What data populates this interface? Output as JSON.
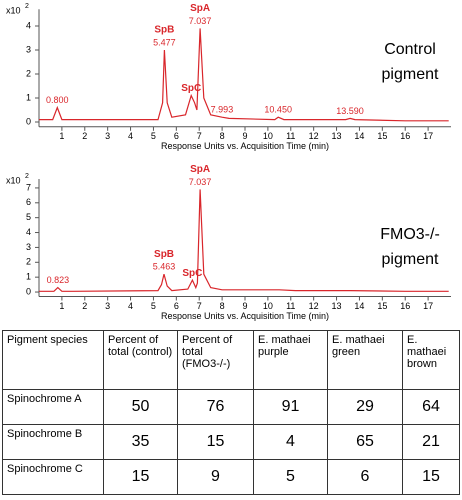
{
  "chart_data": [
    {
      "type": "line",
      "color": "#d9262b",
      "y_scale": {
        "base": "x10",
        "exponent": "2"
      },
      "x_label": "Response Units vs. Acquisition Time (min)",
      "side_label": [
        "Control",
        "pigment"
      ],
      "x": [
        0,
        0.6,
        0.8,
        1.0,
        1.5,
        5.2,
        5.4,
        5.477,
        5.6,
        5.8,
        6.4,
        6.65,
        6.8,
        6.9,
        7.037,
        7.2,
        7.5,
        7.993,
        8.3,
        10.3,
        10.45,
        10.7,
        13.4,
        13.59,
        13.8,
        16,
        17.9
      ],
      "values": [
        0.1,
        0.1,
        0.6,
        0.1,
        0.1,
        0.1,
        0.8,
        3.0,
        0.8,
        0.2,
        0.3,
        1.1,
        0.8,
        0.5,
        3.9,
        1.0,
        0.3,
        0.2,
        0.15,
        0.1,
        0.2,
        0.1,
        0.1,
        0.15,
        0.1,
        0.05,
        0.05
      ],
      "xlim": [
        0,
        18
      ],
      "xticks": [
        1,
        2,
        3,
        4,
        5,
        6,
        7,
        8,
        9,
        10,
        11,
        12,
        13,
        14,
        15,
        16,
        17
      ],
      "ylim": [
        -0.2,
        4.7
      ],
      "yticks": [
        0,
        1,
        2,
        3,
        4
      ],
      "annotations": [
        {
          "label": "0.800",
          "x": 0.8
        },
        {
          "name": "SpB",
          "label": "5.477",
          "x": 5.477
        },
        {
          "name": "SpC",
          "x": 6.65
        },
        {
          "name": "SpA",
          "label": "7.037",
          "x": 7.037
        },
        {
          "label": "7.993",
          "x": 7.993
        },
        {
          "label": "10.450",
          "x": 10.45
        },
        {
          "label": "13.590",
          "x": 13.59
        }
      ]
    },
    {
      "type": "line",
      "color": "#d9262b",
      "y_scale": {
        "base": "x10",
        "exponent": "2"
      },
      "x_label": "Response Units vs. Acquisition Time (min)",
      "side_label": [
        "FMO3-/-",
        "pigment"
      ],
      "x": [
        0,
        0.65,
        0.823,
        1.0,
        1.5,
        5.2,
        5.35,
        5.463,
        5.6,
        5.8,
        6.5,
        6.7,
        6.85,
        6.92,
        7.037,
        7.2,
        7.5,
        8.0,
        10.5,
        11.2,
        13.6,
        16,
        17.9
      ],
      "values": [
        0.05,
        0.05,
        0.3,
        0.05,
        0.05,
        0.1,
        0.5,
        1.2,
        0.4,
        0.1,
        0.2,
        0.8,
        0.3,
        0.6,
        6.9,
        1.2,
        0.3,
        0.15,
        0.15,
        0.1,
        0.1,
        0.05,
        0.05
      ],
      "xlim": [
        0,
        18
      ],
      "xticks": [
        1,
        2,
        3,
        4,
        5,
        6,
        7,
        8,
        9,
        10,
        11,
        12,
        13,
        14,
        15,
        16,
        17
      ],
      "ylim": [
        -0.3,
        7.6
      ],
      "yticks": [
        0,
        1,
        2,
        3,
        4,
        5,
        6,
        7
      ],
      "annotations": [
        {
          "label": "0.823",
          "x": 0.823
        },
        {
          "name": "SpB",
          "label": "5.463",
          "x": 5.463
        },
        {
          "name": "SpC",
          "x": 6.7
        },
        {
          "name": "SpA",
          "label": "7.037",
          "x": 7.037
        }
      ]
    }
  ],
  "table": {
    "header": [
      "Pigment species",
      "Percent of total (control)",
      "Percent of total (FMO3-/-)",
      "E. mathaei purple",
      "E. mathaei green",
      "E. mathaei brown"
    ],
    "rows": [
      [
        "Spinochrome A",
        50,
        76,
        91,
        29,
        64
      ],
      [
        "Spinochrome B",
        35,
        15,
        4,
        65,
        21
      ],
      [
        "Spinochrome C",
        15,
        9,
        5,
        6,
        15
      ]
    ]
  }
}
